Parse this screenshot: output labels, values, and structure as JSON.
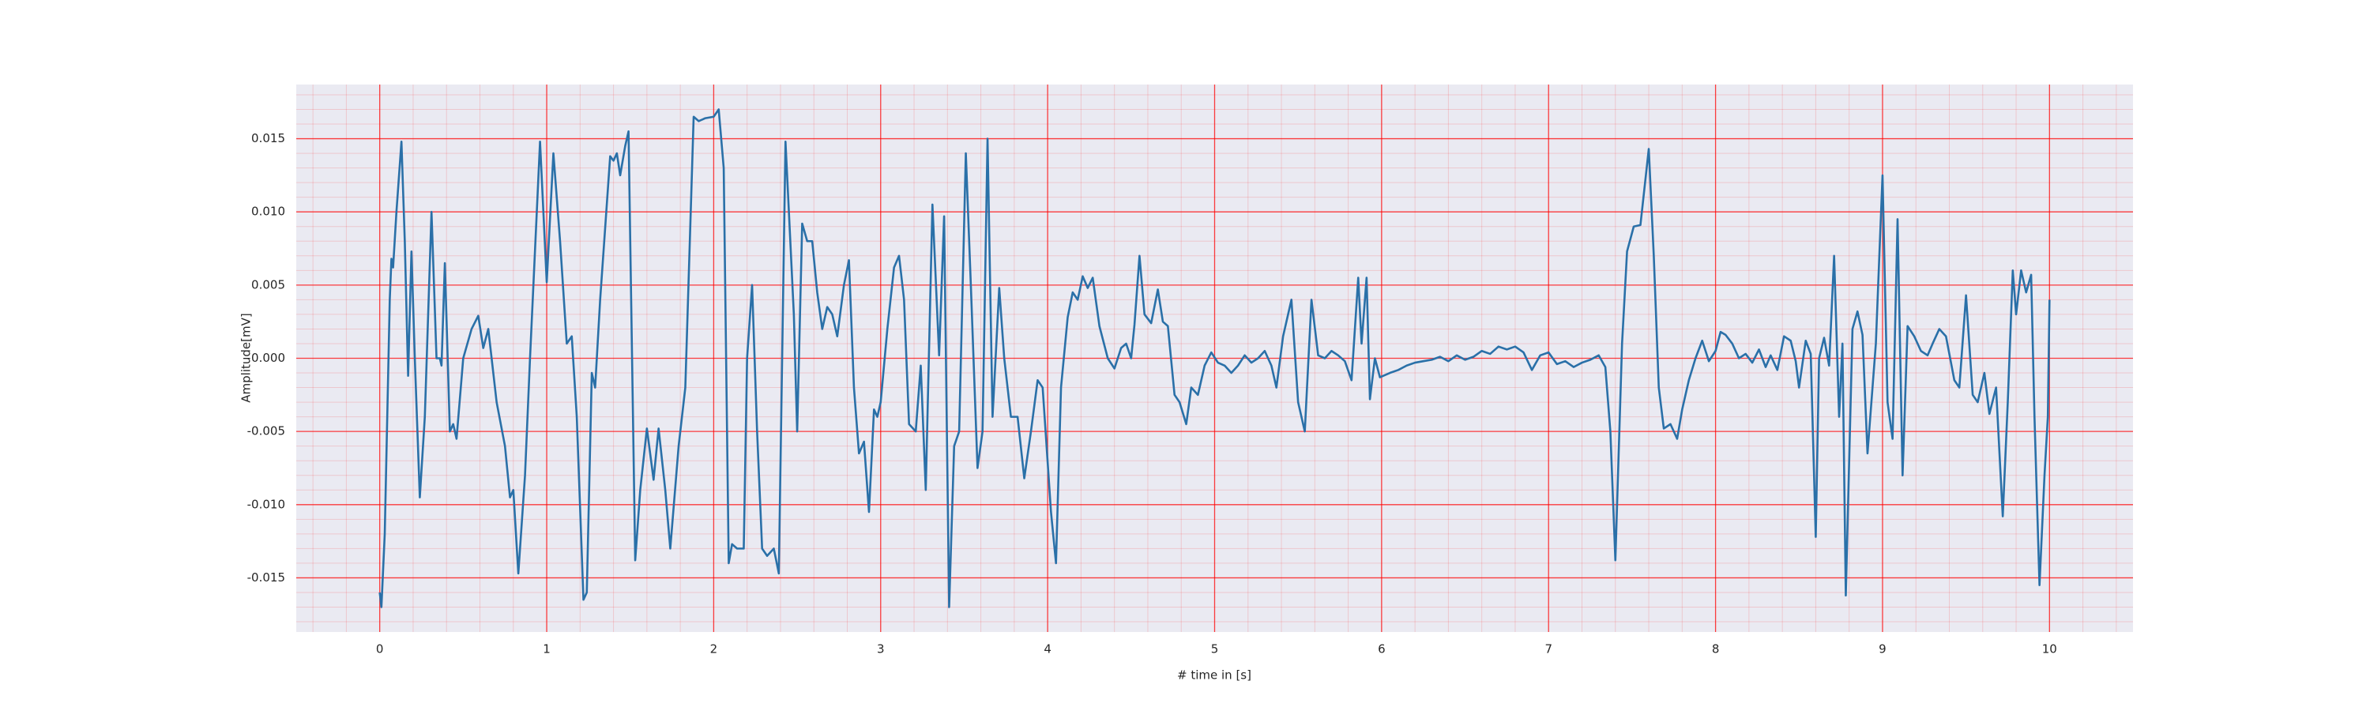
{
  "chart_data": {
    "type": "line",
    "xlabel": "# time in [s]",
    "ylabel": "Amplitude[mV]",
    "xlim": [
      -0.5,
      10.5
    ],
    "ylim": [
      -0.0187,
      0.0187
    ],
    "xticks": [
      0,
      1,
      2,
      3,
      4,
      5,
      6,
      7,
      8,
      9,
      10
    ],
    "yticks": [
      -0.015,
      {
        "value": -0.01,
        "label": "-0.010"
      },
      -0.005,
      {
        "value": 0,
        "label": "0.000"
      },
      0.005,
      {
        "value": 0.01,
        "label": "0.010"
      },
      0.015
    ],
    "grid": true,
    "minor_grid": true,
    "grid_color": "#ff0000",
    "background": "#eaeaf2",
    "series": [
      {
        "color": "#2a70a8",
        "x": [
          0.0,
          0.01,
          0.03,
          0.06,
          0.07,
          0.08,
          0.1,
          0.13,
          0.15,
          0.17,
          0.19,
          0.21,
          0.24,
          0.27,
          0.31,
          0.34,
          0.36,
          0.37,
          0.39,
          0.42,
          0.44,
          0.46,
          0.5,
          0.55,
          0.59,
          0.62,
          0.65,
          0.7,
          0.75,
          0.78,
          0.8,
          0.83,
          0.87,
          0.9,
          0.96,
          1.0,
          1.04,
          1.08,
          1.12,
          1.15,
          1.18,
          1.22,
          1.24,
          1.27,
          1.29,
          1.32,
          1.38,
          1.4,
          1.42,
          1.44,
          1.47,
          1.49,
          1.53,
          1.56,
          1.6,
          1.64,
          1.67,
          1.71,
          1.74,
          1.79,
          1.83,
          1.88,
          1.91,
          1.95,
          2.0,
          2.03,
          2.06,
          2.09,
          2.11,
          2.14,
          2.18,
          2.2,
          2.23,
          2.26,
          2.29,
          2.32,
          2.36,
          2.39,
          2.43,
          2.48,
          2.5,
          2.53,
          2.56,
          2.59,
          2.62,
          2.65,
          2.68,
          2.71,
          2.74,
          2.78,
          2.81,
          2.84,
          2.87,
          2.9,
          2.93,
          2.96,
          2.98,
          3.0,
          3.04,
          3.08,
          3.11,
          3.14,
          3.17,
          3.21,
          3.24,
          3.27,
          3.31,
          3.35,
          3.38,
          3.41,
          3.44,
          3.47,
          3.51,
          3.54,
          3.58,
          3.61,
          3.64,
          3.67,
          3.71,
          3.74,
          3.78,
          3.82,
          3.86,
          3.9,
          3.94,
          3.97,
          4.02,
          4.05,
          4.08,
          4.12,
          4.15,
          4.18,
          4.21,
          4.24,
          4.27,
          4.31,
          4.36,
          4.4,
          4.44,
          4.47,
          4.5,
          4.52,
          4.55,
          4.58,
          4.62,
          4.66,
          4.69,
          4.72,
          4.76,
          4.79,
          4.83,
          4.86,
          4.9,
          4.94,
          4.98,
          5.02,
          5.06,
          5.1,
          5.14,
          5.18,
          5.22,
          5.26,
          5.3,
          5.34,
          5.37,
          5.41,
          5.46,
          5.5,
          5.54,
          5.58,
          5.62,
          5.66,
          5.7,
          5.74,
          5.78,
          5.82,
          5.86,
          5.88,
          5.91,
          5.93,
          5.96,
          5.99,
          6.05,
          6.1,
          6.15,
          6.2,
          6.25,
          6.3,
          6.35,
          6.4,
          6.45,
          6.5,
          6.55,
          6.6,
          6.65,
          6.7,
          6.75,
          6.8,
          6.85,
          6.9,
          6.95,
          7.0,
          7.05,
          7.1,
          7.15,
          7.2,
          7.25,
          7.3,
          7.34,
          7.37,
          7.4,
          7.44,
          7.47,
          7.51,
          7.55,
          7.6,
          7.63,
          7.66,
          7.69,
          7.73,
          7.77,
          7.8,
          7.84,
          7.88,
          7.92,
          7.96,
          8.0,
          8.03,
          8.06,
          8.1,
          8.14,
          8.18,
          8.22,
          8.26,
          8.3,
          8.33,
          8.37,
          8.41,
          8.45,
          8.48,
          8.5,
          8.54,
          8.57,
          8.6,
          8.62,
          8.65,
          8.68,
          8.71,
          8.74,
          8.76,
          8.78,
          8.82,
          8.85,
          8.88,
          8.91,
          8.94,
          8.96,
          9.0,
          9.03,
          9.06,
          9.09,
          9.12,
          9.15,
          9.19,
          9.23,
          9.27,
          9.3,
          9.34,
          9.38,
          9.43,
          9.46,
          9.5,
          9.54,
          9.57,
          9.61,
          9.64,
          9.68,
          9.72,
          9.75,
          9.78,
          9.8,
          9.83,
          9.86,
          9.89,
          9.91,
          9.94,
          9.97,
          9.99,
          10.0
        ],
        "values": [
          -0.016,
          -0.017,
          -0.012,
          0.004,
          0.0068,
          0.0062,
          0.01,
          0.0148,
          0.008,
          -0.0012,
          0.0073,
          0.0,
          -0.0095,
          -0.004,
          0.01,
          0.0,
          0.0,
          -0.0005,
          0.0065,
          -0.005,
          -0.0045,
          -0.0055,
          0.0,
          0.002,
          0.0029,
          0.0007,
          0.002,
          -0.003,
          -0.006,
          -0.0095,
          -0.009,
          -0.0147,
          -0.008,
          0.0,
          0.0148,
          0.0052,
          0.014,
          0.008,
          0.001,
          0.0015,
          -0.004,
          -0.0165,
          -0.016,
          -0.001,
          -0.002,
          0.004,
          0.0138,
          0.0135,
          0.014,
          0.0125,
          0.0145,
          0.0155,
          -0.0138,
          -0.009,
          -0.0048,
          -0.0083,
          -0.0048,
          -0.009,
          -0.013,
          -0.006,
          -0.002,
          0.0165,
          0.0162,
          0.0164,
          0.0165,
          0.017,
          0.013,
          -0.014,
          -0.0127,
          -0.013,
          -0.013,
          0.0,
          0.005,
          -0.005,
          -0.013,
          -0.0135,
          -0.013,
          -0.0147,
          0.0148,
          0.003,
          -0.005,
          0.0092,
          0.008,
          0.008,
          0.0045,
          0.002,
          0.0035,
          0.003,
          0.0015,
          0.005,
          0.0067,
          -0.002,
          -0.0065,
          -0.0057,
          -0.0105,
          -0.0035,
          -0.004,
          -0.003,
          0.002,
          0.0062,
          0.007,
          0.004,
          -0.0045,
          -0.005,
          -0.0005,
          -0.009,
          0.0105,
          0.0002,
          0.0097,
          -0.017,
          -0.006,
          -0.005,
          0.014,
          0.005,
          -0.0075,
          -0.005,
          0.015,
          -0.004,
          0.0048,
          0.0,
          -0.004,
          -0.004,
          -0.0082,
          -0.005,
          -0.0015,
          -0.002,
          -0.0105,
          -0.014,
          -0.002,
          0.0028,
          0.0045,
          0.004,
          0.0056,
          0.0048,
          0.0055,
          0.0022,
          0.0,
          -0.0007,
          0.0007,
          0.001,
          0.0,
          0.0023,
          0.007,
          0.003,
          0.0024,
          0.0047,
          0.0025,
          0.0022,
          -0.0025,
          -0.003,
          -0.0045,
          -0.002,
          -0.0025,
          -0.0005,
          0.0004,
          -0.0003,
          -0.0005,
          -0.001,
          -0.0005,
          0.0002,
          -0.0003,
          0.0,
          0.0005,
          -0.0005,
          -0.002,
          0.0015,
          0.004,
          -0.003,
          -0.005,
          0.004,
          0.0002,
          0.0,
          0.0005,
          0.0002,
          -0.0002,
          -0.0015,
          0.0055,
          0.001,
          0.0055,
          -0.0028,
          0.0,
          -0.0013,
          -0.001,
          -0.0008,
          -0.0005,
          -0.0003,
          -0.0002,
          -0.0001,
          0.0001,
          -0.0002,
          0.0002,
          -0.0001,
          0.0001,
          0.0005,
          0.0003,
          0.0008,
          0.0006,
          0.0008,
          0.0004,
          -0.0008,
          0.0002,
          0.0004,
          -0.0004,
          -0.0002,
          -0.0006,
          -0.0003,
          -0.0001,
          0.0002,
          -0.0006,
          -0.005,
          -0.0138,
          0.001,
          0.0073,
          0.009,
          0.0091,
          0.0143,
          0.007,
          -0.002,
          -0.0048,
          -0.0045,
          -0.0055,
          -0.0035,
          -0.0015,
          0.0,
          0.0012,
          -0.0002,
          0.0005,
          0.0018,
          0.0016,
          0.001,
          0.0,
          0.0003,
          -0.0003,
          0.0006,
          -0.0006,
          0.0002,
          -0.0008,
          0.0015,
          0.0012,
          -0.0002,
          -0.002,
          0.0012,
          0.0003,
          -0.0122,
          0.0,
          0.0014,
          -0.0005,
          0.007,
          -0.004,
          0.001,
          -0.0162,
          0.002,
          0.0032,
          0.0016,
          -0.0065,
          -0.002,
          0.001,
          0.0125,
          -0.003,
          -0.0055,
          0.0095,
          -0.008,
          0.0022,
          0.0015,
          0.0005,
          0.0002,
          0.001,
          0.002,
          0.0015,
          -0.0015,
          -0.002,
          0.0043,
          -0.0025,
          -0.003,
          -0.001,
          -0.0038,
          -0.002,
          -0.0108,
          -0.003,
          0.006,
          0.003,
          0.006,
          0.0045,
          0.0057,
          -0.004,
          -0.0155,
          -0.008,
          -0.004,
          0.004
        ]
      }
    ]
  }
}
